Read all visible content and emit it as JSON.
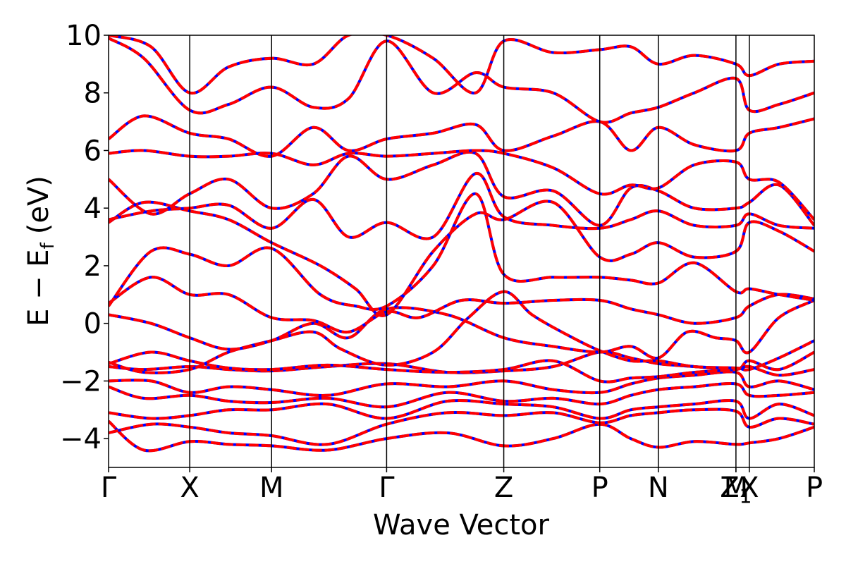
{
  "chart_data": {
    "type": "line",
    "title": "",
    "xlabel": "Wave Vector",
    "ylabel": "E − E",
    "ylabel_sub": "f",
    "ylabel_unit": "(eV)",
    "ylim": [
      -5,
      10
    ],
    "yticks": [
      -4,
      -2,
      0,
      2,
      4,
      6,
      8,
      10
    ],
    "ytick_labels": [
      "−4",
      "−2",
      "0",
      "2",
      "4",
      "6",
      "8",
      "10"
    ],
    "xlim": [
      0,
      10
    ],
    "kpoint_labels": [
      {
        "label": "Γ",
        "sub": "",
        "x": 0.0
      },
      {
        "label": "X",
        "sub": "",
        "x": 1.15
      },
      {
        "label": "M",
        "sub": "",
        "x": 2.31
      },
      {
        "label": "Γ",
        "sub": "",
        "x": 3.94
      },
      {
        "label": "Z",
        "sub": "",
        "x": 5.6
      },
      {
        "label": "P",
        "sub": "",
        "x": 6.96
      },
      {
        "label": "N",
        "sub": "",
        "x": 7.79
      },
      {
        "label": "Z",
        "sub": "1",
        "x": 8.89
      },
      {
        "label": "M",
        "sub": "",
        "x": 8.89
      },
      {
        "label": "X",
        "sub": "",
        "x": 9.08
      },
      {
        "label": "P",
        "sub": "",
        "x": 10.0
      }
    ],
    "vertical_lines_x": [
      1.15,
      2.31,
      3.94,
      5.6,
      6.96,
      7.79,
      8.89,
      9.08
    ],
    "series_styles": [
      {
        "name": "",
        "color": "#0000ff",
        "style": "solid"
      },
      {
        "name": "",
        "color": "#ff0000",
        "style": "dashed"
      }
    ],
    "bands": [
      [
        [
          0,
          -3.4
        ],
        [
          0.5,
          -4.4
        ],
        [
          1.15,
          -4.1
        ],
        [
          1.7,
          -4.2
        ],
        [
          2.31,
          -4.25
        ],
        [
          3.1,
          -4.4
        ],
        [
          3.94,
          -4.0
        ],
        [
          4.8,
          -3.8
        ],
        [
          5.6,
          -4.25
        ],
        [
          6.3,
          -4.0
        ],
        [
          6.96,
          -3.5
        ],
        [
          7.4,
          -4.0
        ],
        [
          7.79,
          -4.3
        ],
        [
          8.3,
          -4.1
        ],
        [
          8.89,
          -4.2
        ],
        [
          9.08,
          -4.15
        ],
        [
          9.5,
          -4.0
        ],
        [
          10,
          -3.6
        ]
      ],
      [
        [
          0,
          -3.8
        ],
        [
          0.6,
          -3.5
        ],
        [
          1.15,
          -3.6
        ],
        [
          1.7,
          -3.8
        ],
        [
          2.31,
          -3.9
        ],
        [
          3.1,
          -4.2
        ],
        [
          3.94,
          -3.5
        ],
        [
          4.8,
          -3.1
        ],
        [
          5.6,
          -3.2
        ],
        [
          6.3,
          -3.1
        ],
        [
          6.96,
          -3.45
        ],
        [
          7.4,
          -3.2
        ],
        [
          7.79,
          -3.1
        ],
        [
          8.3,
          -3.0
        ],
        [
          8.89,
          -3.05
        ],
        [
          9.08,
          -3.6
        ],
        [
          9.5,
          -3.3
        ],
        [
          10,
          -3.5
        ]
      ],
      [
        [
          0,
          -3.1
        ],
        [
          0.6,
          -3.3
        ],
        [
          1.15,
          -3.2
        ],
        [
          1.7,
          -3.0
        ],
        [
          2.31,
          -3.0
        ],
        [
          3.1,
          -2.8
        ],
        [
          3.94,
          -3.3
        ],
        [
          4.8,
          -2.7
        ],
        [
          5.6,
          -2.8
        ],
        [
          6.3,
          -2.9
        ],
        [
          6.96,
          -3.3
        ],
        [
          7.4,
          -3.0
        ],
        [
          7.79,
          -2.9
        ],
        [
          8.3,
          -2.8
        ],
        [
          8.89,
          -2.7
        ],
        [
          9.08,
          -3.3
        ],
        [
          9.5,
          -2.8
        ],
        [
          10,
          -3.2
        ]
      ],
      [
        [
          0,
          -2.2
        ],
        [
          0.5,
          -2.6
        ],
        [
          1.15,
          -2.5
        ],
        [
          1.7,
          -2.7
        ],
        [
          2.31,
          -2.75
        ],
        [
          3.1,
          -2.6
        ],
        [
          3.94,
          -2.9
        ],
        [
          4.8,
          -2.4
        ],
        [
          5.6,
          -2.7
        ],
        [
          6.3,
          -2.6
        ],
        [
          6.96,
          -2.8
        ],
        [
          7.4,
          -2.5
        ],
        [
          7.79,
          -2.3
        ],
        [
          8.3,
          -2.2
        ],
        [
          8.89,
          -2.1
        ],
        [
          9.08,
          -2.5
        ],
        [
          9.5,
          -2.5
        ],
        [
          10,
          -2.4
        ]
      ],
      [
        [
          0,
          -2.0
        ],
        [
          0.6,
          -2.0
        ],
        [
          1.15,
          -2.4
        ],
        [
          1.7,
          -2.2
        ],
        [
          2.31,
          -2.3
        ],
        [
          3.1,
          -2.5
        ],
        [
          3.94,
          -2.1
        ],
        [
          4.8,
          -2.2
        ],
        [
          5.6,
          -2.0
        ],
        [
          6.3,
          -2.3
        ],
        [
          6.96,
          -2.4
        ],
        [
          7.4,
          -2.1
        ],
        [
          7.79,
          -1.9
        ],
        [
          8.3,
          -1.8
        ],
        [
          8.89,
          -1.7
        ],
        [
          9.08,
          -2.2
        ],
        [
          9.5,
          -2.0
        ],
        [
          10,
          -2.3
        ]
      ],
      [
        [
          0,
          -1.5
        ],
        [
          0.5,
          -1.6
        ],
        [
          1.15,
          -1.5
        ],
        [
          1.7,
          -1.6
        ],
        [
          2.31,
          -1.65
        ],
        [
          3.1,
          -1.5
        ],
        [
          3.94,
          -1.4
        ],
        [
          4.8,
          -1.7
        ],
        [
          5.6,
          -1.65
        ],
        [
          6.3,
          -1.5
        ],
        [
          6.96,
          -1.0
        ],
        [
          7.4,
          -1.2
        ],
        [
          7.79,
          -1.4
        ],
        [
          8.3,
          -1.5
        ],
        [
          8.89,
          -1.6
        ],
        [
          9.08,
          -1.3
        ],
        [
          9.5,
          -1.6
        ],
        [
          10,
          -1.0
        ]
      ],
      [
        [
          0,
          -1.4
        ],
        [
          0.6,
          -1.0
        ],
        [
          1.15,
          -1.3
        ],
        [
          1.7,
          -1.55
        ],
        [
          2.31,
          -1.6
        ],
        [
          3.1,
          -1.45
        ],
        [
          3.94,
          -1.6
        ],
        [
          4.8,
          -1.7
        ],
        [
          5.6,
          -1.6
        ],
        [
          6.3,
          -1.3
        ],
        [
          6.96,
          -2.0
        ],
        [
          7.4,
          -1.9
        ],
        [
          7.79,
          -1.85
        ],
        [
          8.3,
          -1.7
        ],
        [
          8.89,
          -1.6
        ],
        [
          9.08,
          -1.5
        ],
        [
          9.5,
          -1.8
        ],
        [
          10,
          -1.6
        ]
      ],
      [
        [
          0,
          -1.35
        ],
        [
          0.5,
          -1.7
        ],
        [
          1.15,
          -1.6
        ],
        [
          1.7,
          -1.0
        ],
        [
          2.31,
          -0.6
        ],
        [
          2.9,
          -0.3
        ],
        [
          3.3,
          -0.9
        ],
        [
          3.94,
          -1.45
        ],
        [
          4.6,
          -1.0
        ],
        [
          5.1,
          0.2
        ],
        [
          5.6,
          1.1
        ],
        [
          6.0,
          0.3
        ],
        [
          6.5,
          -0.4
        ],
        [
          6.96,
          -0.95
        ],
        [
          7.4,
          -1.3
        ],
        [
          7.79,
          -1.3
        ],
        [
          8.3,
          -1.5
        ],
        [
          8.89,
          -1.55
        ],
        [
          9.08,
          -1.6
        ],
        [
          9.5,
          -1.2
        ],
        [
          10,
          -0.6
        ]
      ],
      [
        [
          0,
          0.3
        ],
        [
          0.6,
          0.0
        ],
        [
          1.15,
          -0.5
        ],
        [
          1.7,
          -0.9
        ],
        [
          2.31,
          -0.6
        ],
        [
          2.9,
          0.0
        ],
        [
          3.4,
          -0.5
        ],
        [
          3.94,
          0.5
        ],
        [
          4.8,
          0.3
        ],
        [
          5.6,
          -0.5
        ],
        [
          6.3,
          -0.8
        ],
        [
          6.96,
          -1.0
        ],
        [
          7.4,
          -0.8
        ],
        [
          7.79,
          -1.2
        ],
        [
          8.2,
          -0.3
        ],
        [
          8.6,
          -0.5
        ],
        [
          8.89,
          -0.6
        ],
        [
          9.08,
          -1.0
        ],
        [
          9.5,
          0.2
        ],
        [
          10,
          0.8
        ]
      ],
      [
        [
          0,
          0.7
        ],
        [
          0.6,
          1.6
        ],
        [
          1.15,
          1.0
        ],
        [
          1.7,
          1.0
        ],
        [
          2.31,
          0.2
        ],
        [
          2.9,
          0.1
        ],
        [
          3.4,
          -0.3
        ],
        [
          3.94,
          0.4
        ],
        [
          4.4,
          0.2
        ],
        [
          5.0,
          0.8
        ],
        [
          5.6,
          0.7
        ],
        [
          6.3,
          0.8
        ],
        [
          6.96,
          0.8
        ],
        [
          7.4,
          0.5
        ],
        [
          7.79,
          0.3
        ],
        [
          8.3,
          0.0
        ],
        [
          8.89,
          0.2
        ],
        [
          9.08,
          0.6
        ],
        [
          9.5,
          1.0
        ],
        [
          10,
          0.85
        ]
      ],
      [
        [
          0,
          0.6
        ],
        [
          0.6,
          2.5
        ],
        [
          1.15,
          2.4
        ],
        [
          1.7,
          2.0
        ],
        [
          2.31,
          2.6
        ],
        [
          3.0,
          1.0
        ],
        [
          3.5,
          0.6
        ],
        [
          3.94,
          0.6
        ],
        [
          4.6,
          2.0
        ],
        [
          5.2,
          4.5
        ],
        [
          5.6,
          1.7
        ],
        [
          6.3,
          1.6
        ],
        [
          6.96,
          1.6
        ],
        [
          7.4,
          1.5
        ],
        [
          7.79,
          1.4
        ],
        [
          8.3,
          2.1
        ],
        [
          8.89,
          1.1
        ],
        [
          9.08,
          1.2
        ],
        [
          9.5,
          1.0
        ],
        [
          10,
          0.8
        ]
      ],
      [
        [
          0,
          3.5
        ],
        [
          0.5,
          4.2
        ],
        [
          1.15,
          3.9
        ],
        [
          1.7,
          3.6
        ],
        [
          2.31,
          2.8
        ],
        [
          3.0,
          2.0
        ],
        [
          3.5,
          1.2
        ],
        [
          3.94,
          0.3
        ],
        [
          4.6,
          2.5
        ],
        [
          5.2,
          3.8
        ],
        [
          5.6,
          3.6
        ],
        [
          6.3,
          4.2
        ],
        [
          6.96,
          2.3
        ],
        [
          7.4,
          2.4
        ],
        [
          7.79,
          2.8
        ],
        [
          8.3,
          2.3
        ],
        [
          8.89,
          2.5
        ],
        [
          9.08,
          3.5
        ],
        [
          9.5,
          3.2
        ],
        [
          10,
          2.5
        ]
      ],
      [
        [
          0,
          3.6
        ],
        [
          0.6,
          3.9
        ],
        [
          1.15,
          4.0
        ],
        [
          1.7,
          4.1
        ],
        [
          2.31,
          3.3
        ],
        [
          2.9,
          4.3
        ],
        [
          3.4,
          3.0
        ],
        [
          3.94,
          3.5
        ],
        [
          4.6,
          3.0
        ],
        [
          5.2,
          5.2
        ],
        [
          5.6,
          3.7
        ],
        [
          6.3,
          3.4
        ],
        [
          6.96,
          3.3
        ],
        [
          7.4,
          3.6
        ],
        [
          7.79,
          3.9
        ],
        [
          8.3,
          3.4
        ],
        [
          8.89,
          3.4
        ],
        [
          9.08,
          3.8
        ],
        [
          9.5,
          3.4
        ],
        [
          10,
          3.3
        ]
      ],
      [
        [
          0,
          5.0
        ],
        [
          0.6,
          3.8
        ],
        [
          1.15,
          4.5
        ],
        [
          1.7,
          5.0
        ],
        [
          2.31,
          4.0
        ],
        [
          2.9,
          4.5
        ],
        [
          3.4,
          5.8
        ],
        [
          3.94,
          5.0
        ],
        [
          4.6,
          5.5
        ],
        [
          5.2,
          5.9
        ],
        [
          5.6,
          4.4
        ],
        [
          6.3,
          4.6
        ],
        [
          6.96,
          3.4
        ],
        [
          7.4,
          4.7
        ],
        [
          7.79,
          4.6
        ],
        [
          8.3,
          4.0
        ],
        [
          8.89,
          4.0
        ],
        [
          9.08,
          4.2
        ],
        [
          9.5,
          4.8
        ],
        [
          10,
          3.4
        ]
      ],
      [
        [
          0,
          5.9
        ],
        [
          0.5,
          6.0
        ],
        [
          1.15,
          5.8
        ],
        [
          1.7,
          5.8
        ],
        [
          2.31,
          5.9
        ],
        [
          2.9,
          5.5
        ],
        [
          3.4,
          5.9
        ],
        [
          3.94,
          5.8
        ],
        [
          4.6,
          5.9
        ],
        [
          5.2,
          6.0
        ],
        [
          5.6,
          5.9
        ],
        [
          6.3,
          5.4
        ],
        [
          6.96,
          4.5
        ],
        [
          7.4,
          4.8
        ],
        [
          7.79,
          4.7
        ],
        [
          8.3,
          5.5
        ],
        [
          8.89,
          5.6
        ],
        [
          9.08,
          5.0
        ],
        [
          9.5,
          4.9
        ],
        [
          10,
          3.6
        ]
      ],
      [
        [
          0,
          6.4
        ],
        [
          0.5,
          7.2
        ],
        [
          1.15,
          6.6
        ],
        [
          1.7,
          6.4
        ],
        [
          2.31,
          5.8
        ],
        [
          2.9,
          6.8
        ],
        [
          3.4,
          6.0
        ],
        [
          3.94,
          6.4
        ],
        [
          4.6,
          6.6
        ],
        [
          5.2,
          6.9
        ],
        [
          5.6,
          6.0
        ],
        [
          6.3,
          6.5
        ],
        [
          6.96,
          7.0
        ],
        [
          7.4,
          6.0
        ],
        [
          7.79,
          6.8
        ],
        [
          8.3,
          6.2
        ],
        [
          8.89,
          6.0
        ],
        [
          9.08,
          6.6
        ],
        [
          9.5,
          6.8
        ],
        [
          10,
          7.1
        ]
      ],
      [
        [
          0,
          9.9
        ],
        [
          0.5,
          9.2
        ],
        [
          1.15,
          7.4
        ],
        [
          1.7,
          7.6
        ],
        [
          2.31,
          8.2
        ],
        [
          2.9,
          7.5
        ],
        [
          3.4,
          7.8
        ],
        [
          3.94,
          9.8
        ],
        [
          4.6,
          8.0
        ],
        [
          5.2,
          8.7
        ],
        [
          5.6,
          8.2
        ],
        [
          6.3,
          8.0
        ],
        [
          6.96,
          7.0
        ],
        [
          7.4,
          7.3
        ],
        [
          7.79,
          7.5
        ],
        [
          8.3,
          8.0
        ],
        [
          8.89,
          8.5
        ],
        [
          9.08,
          7.4
        ],
        [
          9.5,
          7.6
        ],
        [
          10,
          8.0
        ]
      ],
      [
        [
          0,
          10.0
        ],
        [
          0.6,
          9.6
        ],
        [
          1.15,
          8.0
        ],
        [
          1.7,
          8.9
        ],
        [
          2.31,
          9.2
        ],
        [
          2.9,
          9.0
        ],
        [
          3.4,
          10.0
        ],
        [
          3.94,
          10.0
        ],
        [
          4.6,
          9.2
        ],
        [
          5.2,
          8.0
        ],
        [
          5.6,
          9.8
        ],
        [
          6.3,
          9.4
        ],
        [
          6.96,
          9.5
        ],
        [
          7.4,
          9.6
        ],
        [
          7.79,
          9.0
        ],
        [
          8.3,
          9.3
        ],
        [
          8.89,
          9.0
        ],
        [
          9.08,
          8.6
        ],
        [
          9.5,
          9.0
        ],
        [
          10,
          9.1
        ]
      ]
    ]
  }
}
